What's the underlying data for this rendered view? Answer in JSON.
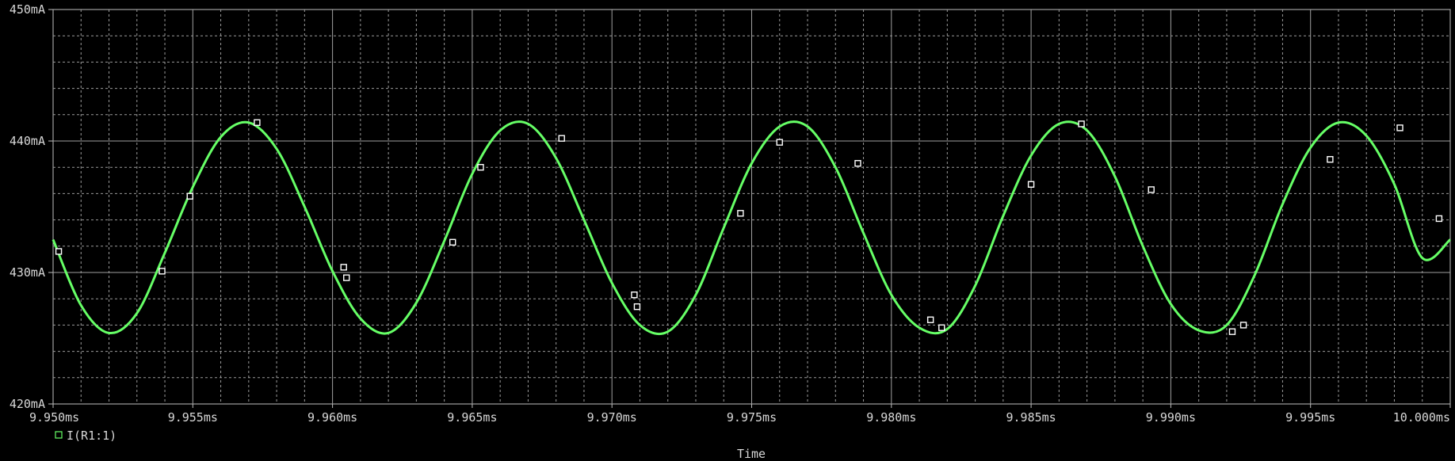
{
  "chart_data": {
    "type": "line",
    "title": "",
    "xlabel": "Time",
    "ylabel": "",
    "xlim": [
      9.95,
      10.0
    ],
    "ylim": [
      420,
      450
    ],
    "x_unit": "ms",
    "y_unit": "mA",
    "x_ticks": [
      {
        "value": 9.95,
        "label": "9.950ms"
      },
      {
        "value": 9.955,
        "label": "9.955ms"
      },
      {
        "value": 9.96,
        "label": "9.960ms"
      },
      {
        "value": 9.965,
        "label": "9.965ms"
      },
      {
        "value": 9.97,
        "label": "9.970ms"
      },
      {
        "value": 9.975,
        "label": "9.975ms"
      },
      {
        "value": 9.98,
        "label": "9.980ms"
      },
      {
        "value": 9.985,
        "label": "9.985ms"
      },
      {
        "value": 9.99,
        "label": "9.990ms"
      },
      {
        "value": 9.995,
        "label": "9.995ms"
      },
      {
        "value": 10.0,
        "label": "10.000ms"
      }
    ],
    "y_ticks": [
      {
        "value": 420,
        "label": "420mA"
      },
      {
        "value": 430,
        "label": "430mA"
      },
      {
        "value": 440,
        "label": "440mA"
      },
      {
        "value": 450,
        "label": "450mA"
      }
    ],
    "grid": true,
    "legend_position": "bottom-left",
    "series": [
      {
        "name": "I(R1:1)",
        "color": "#66ff66",
        "marker": "hollow-square",
        "x": [
          9.95,
          9.951,
          9.952,
          9.953,
          9.954,
          9.955,
          9.956,
          9.957,
          9.958,
          9.959,
          9.96,
          9.961,
          9.962,
          9.963,
          9.964,
          9.965,
          9.966,
          9.967,
          9.968,
          9.969,
          9.97,
          9.971,
          9.972,
          9.973,
          9.974,
          9.975,
          9.976,
          9.977,
          9.978,
          9.979,
          9.98,
          9.981,
          9.982,
          9.983,
          9.984,
          9.985,
          9.986,
          9.987,
          9.988,
          9.989,
          9.99,
          9.991,
          9.992,
          9.993,
          9.994,
          9.995,
          9.996,
          9.997,
          9.998,
          9.999,
          10.0
        ],
        "values": [
          432.5,
          427.5,
          425.4,
          426.9,
          431.5,
          436.5,
          440.3,
          441.4,
          439.4,
          435.0,
          430.1,
          426.5,
          425.4,
          427.7,
          432.4,
          437.5,
          440.8,
          441.3,
          438.7,
          434.0,
          429.2,
          426.0,
          425.5,
          428.3,
          433.4,
          438.3,
          441.1,
          441.1,
          438.0,
          433.0,
          428.3,
          425.8,
          425.7,
          429.0,
          434.3,
          438.9,
          441.3,
          440.8,
          437.3,
          432.0,
          427.6,
          425.6,
          426.0,
          429.8,
          435.2,
          439.5,
          441.4,
          440.4,
          436.7,
          431.1,
          432.5
        ],
        "marker_x": [
          9.9502,
          9.9539,
          9.9549,
          9.9573,
          9.9604,
          9.9605,
          9.9643,
          9.9653,
          9.9682,
          9.9708,
          9.9709,
          9.9746,
          9.976,
          9.9788,
          9.9814,
          9.9818,
          9.985,
          9.9868,
          9.9893,
          9.9922,
          9.9926,
          9.9957,
          9.9982,
          9.9996
        ],
        "marker_values": [
          431.6,
          430.1,
          435.8,
          441.4,
          430.4,
          429.6,
          432.3,
          438.0,
          440.2,
          428.3,
          427.4,
          434.5,
          439.9,
          438.3,
          426.4,
          425.8,
          436.7,
          441.3,
          436.3,
          425.5,
          426.0,
          438.6,
          441.0,
          434.1
        ]
      }
    ]
  }
}
